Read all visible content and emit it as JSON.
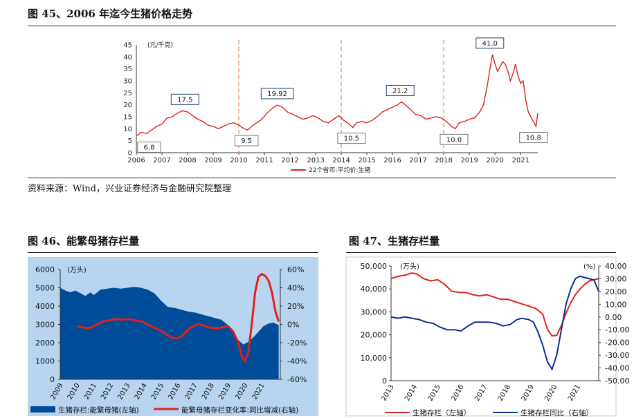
{
  "fig45": {
    "title": "图 45、2006 年迄今生猪价格走势",
    "source": "资料来源：Wind，兴业证券经济与金融研究院整理"
  },
  "fig46": {
    "title": "图 46、能繁母猪存栏量"
  },
  "fig47": {
    "title": "图 47、生猪存栏量"
  },
  "chart_data": [
    {
      "id": "fig45",
      "type": "line",
      "unit_label": "(元/千克)",
      "y_ticks": [
        "0",
        "5",
        "10",
        "15",
        "20",
        "25",
        "30",
        "35",
        "40",
        "45"
      ],
      "ylim": [
        0,
        45
      ],
      "x_ticks": [
        "2006",
        "2007",
        "2008",
        "2009",
        "2010",
        "2011",
        "2012",
        "2013",
        "2014",
        "2015",
        "2016",
        "2017",
        "2018",
        "2019",
        "2020",
        "2021"
      ],
      "xlim": [
        2006,
        2021.67
      ],
      "grid": false,
      "legend": "bottom-center",
      "series": [
        {
          "name": "22个省市:平均价:生猪",
          "color": "#e0201b",
          "x": [
            2006.0,
            2006.2,
            2006.4,
            2006.6,
            2006.8,
            2007.0,
            2007.2,
            2007.4,
            2007.6,
            2007.8,
            2008.0,
            2008.2,
            2008.4,
            2008.6,
            2008.8,
            2009.0,
            2009.2,
            2009.4,
            2009.6,
            2009.8,
            2010.0,
            2010.2,
            2010.35,
            2010.5,
            2010.7,
            2010.9,
            2011.1,
            2011.3,
            2011.5,
            2011.7,
            2011.9,
            2012.1,
            2012.3,
            2012.5,
            2012.7,
            2012.9,
            2013.1,
            2013.3,
            2013.5,
            2013.7,
            2013.9,
            2014.1,
            2014.3,
            2014.45,
            2014.6,
            2014.8,
            2015.0,
            2015.2,
            2015.4,
            2015.6,
            2015.8,
            2016.0,
            2016.2,
            2016.35,
            2016.5,
            2016.7,
            2016.9,
            2017.1,
            2017.3,
            2017.5,
            2017.7,
            2017.9,
            2018.1,
            2018.3,
            2018.45,
            2018.6,
            2018.8,
            2019.0,
            2019.2,
            2019.4,
            2019.55,
            2019.7,
            2019.8,
            2019.9,
            2020.0,
            2020.1,
            2020.2,
            2020.3,
            2020.4,
            2020.5,
            2020.6,
            2020.7,
            2020.8,
            2020.9,
            2021.0,
            2021.1,
            2021.2,
            2021.3,
            2021.4,
            2021.5,
            2021.6,
            2021.67
          ],
          "y": [
            7.0,
            8.5,
            8.0,
            9.5,
            11.0,
            12.0,
            14.5,
            15.0,
            16.5,
            17.5,
            17.0,
            15.5,
            14.0,
            13.0,
            11.5,
            11.0,
            10.0,
            11.0,
            12.0,
            12.5,
            11.5,
            10.0,
            9.5,
            11.0,
            12.5,
            14.0,
            16.5,
            18.5,
            19.9,
            19.0,
            17.0,
            16.0,
            15.0,
            14.0,
            14.5,
            15.5,
            14.5,
            13.0,
            12.5,
            14.0,
            15.5,
            13.5,
            12.0,
            10.5,
            12.5,
            13.0,
            12.5,
            13.5,
            15.0,
            17.0,
            18.0,
            19.0,
            20.0,
            21.2,
            20.0,
            18.0,
            16.0,
            15.5,
            14.0,
            14.5,
            15.0,
            14.5,
            13.0,
            11.0,
            10.0,
            12.5,
            13.0,
            14.0,
            14.5,
            17.0,
            20.0,
            28.0,
            35.0,
            41.0,
            37.0,
            34.0,
            36.0,
            38.0,
            37.0,
            34.0,
            30.0,
            33.0,
            37.0,
            32.0,
            29.0,
            30.0,
            22.0,
            17.0,
            15.0,
            13.0,
            11.0,
            16.5
          ]
        }
      ],
      "annotations": [
        {
          "label": "6.8",
          "x": 2006.5,
          "y": 6.8
        },
        {
          "label": "17.5",
          "x": 2007.9,
          "y": 17.5
        },
        {
          "label": "9.5",
          "x": 2010.3,
          "y": 9.5
        },
        {
          "label": "19.92",
          "x": 2011.5,
          "y": 19.92
        },
        {
          "label": "10.5",
          "x": 2014.4,
          "y": 10.5
        },
        {
          "label": "21.2",
          "x": 2016.3,
          "y": 21.2
        },
        {
          "label": "10.0",
          "x": 2018.4,
          "y": 10.0
        },
        {
          "label": "41.0",
          "x": 2019.8,
          "y": 41.0
        },
        {
          "label": "10.8",
          "x": 2021.5,
          "y": 10.8
        }
      ],
      "dividers_x": [
        2010.0,
        2014.0,
        2018.0
      ]
    },
    {
      "id": "fig46",
      "type": "area",
      "unit_label": "(万头)",
      "y_left_ticks": [
        "6000",
        "5000",
        "4000",
        "3000",
        "2000",
        "1000",
        "0"
      ],
      "ylim_left": [
        0,
        6000
      ],
      "y_right_ticks": [
        "60%",
        "40%",
        "20%",
        "0%",
        "-20%",
        "-40%",
        "-60%"
      ],
      "ylim_right": [
        -60,
        60
      ],
      "x_ticks": [
        "2009",
        "2010",
        "2011",
        "2012",
        "2013",
        "2014",
        "2015",
        "2016",
        "2017",
        "2018",
        "2019",
        "2020",
        "2021"
      ],
      "xlim": [
        2009,
        2022.1
      ],
      "background": "#b8d4ef",
      "legend": "bottom",
      "series": [
        {
          "name": "生猪存栏:能繁母猪(左轴)",
          "axis": "left",
          "color": "#004c98",
          "x": [
            2009.0,
            2009.3,
            2009.6,
            2009.9,
            2010.2,
            2010.5,
            2010.8,
            2011.0,
            2011.4,
            2011.8,
            2012.2,
            2012.6,
            2013.0,
            2013.4,
            2013.8,
            2014.2,
            2014.6,
            2015.0,
            2015.4,
            2015.8,
            2016.2,
            2016.6,
            2017.0,
            2017.4,
            2017.8,
            2018.2,
            2018.6,
            2019.0,
            2019.3,
            2019.6,
            2019.9,
            2020.2,
            2020.5,
            2020.8,
            2021.1,
            2021.4,
            2021.7,
            2022.0
          ],
          "y": [
            5000,
            4850,
            4750,
            4850,
            4700,
            4550,
            4750,
            4600,
            4900,
            4950,
            5000,
            4950,
            5000,
            5050,
            5000,
            4900,
            4700,
            4300,
            3950,
            3900,
            3800,
            3700,
            3650,
            3550,
            3450,
            3350,
            3250,
            2950,
            2500,
            2150,
            1900,
            2050,
            2300,
            2600,
            2900,
            3050,
            3100,
            2950
          ]
        },
        {
          "name": "能繁母猪存栏变化率:同比增减(右轴)",
          "axis": "right",
          "color": "#e0201b",
          "x": [
            2010.0,
            2010.3,
            2010.6,
            2010.9,
            2011.2,
            2011.5,
            2011.8,
            2012.1,
            2012.4,
            2012.7,
            2013.0,
            2013.3,
            2013.6,
            2013.9,
            2014.2,
            2014.5,
            2014.8,
            2015.1,
            2015.4,
            2015.7,
            2016.0,
            2016.3,
            2016.6,
            2016.9,
            2017.2,
            2017.5,
            2017.8,
            2018.1,
            2018.4,
            2018.7,
            2019.0,
            2019.3,
            2019.6,
            2019.8,
            2020.0,
            2020.2,
            2020.4,
            2020.6,
            2020.8,
            2021.0,
            2021.2,
            2021.4,
            2021.6,
            2021.8,
            2022.0
          ],
          "y": [
            -2,
            -3,
            -4,
            -3,
            0,
            3,
            4,
            5,
            6,
            5,
            6,
            5,
            4,
            3,
            0,
            -3,
            -5,
            -8,
            -12,
            -15,
            -15,
            -12,
            -6,
            -2,
            0,
            -1,
            -3,
            -4,
            -4,
            -3,
            -2,
            -8,
            -20,
            -35,
            -40,
            -30,
            0,
            35,
            52,
            55,
            53,
            48,
            35,
            15,
            3
          ]
        }
      ]
    },
    {
      "id": "fig47",
      "type": "line",
      "unit_label_left": "(万头)",
      "unit_label_right": "(%)",
      "y_left_ticks": [
        "50,000",
        "40,000",
        "30,000",
        "20,000",
        "10,000",
        "0"
      ],
      "ylim_left": [
        0,
        50000
      ],
      "y_right_ticks": [
        "40.00",
        "30.00",
        "20.00",
        "10.00",
        "0.00",
        "-10.00",
        "-20.00",
        "-30.00",
        "-40.00",
        "-50.00"
      ],
      "ylim_right": [
        -50,
        40
      ],
      "x_ticks": [
        "2013",
        "2014",
        "2015",
        "2016",
        "2017",
        "2018",
        "2019",
        "2020",
        "2021"
      ],
      "xlim": [
        2013,
        2021.9
      ],
      "legend": "bottom",
      "series": [
        {
          "name": "生猪存栏（左轴）",
          "axis": "left",
          "color": "#e0201b",
          "x": [
            2013.0,
            2013.3,
            2013.6,
            2013.9,
            2014.1,
            2014.4,
            2014.7,
            2015.0,
            2015.3,
            2015.6,
            2015.9,
            2016.2,
            2016.5,
            2016.8,
            2017.1,
            2017.4,
            2017.7,
            2018.0,
            2018.3,
            2018.6,
            2018.9,
            2019.2,
            2019.5,
            2019.7,
            2019.9,
            2020.1,
            2020.3,
            2020.5,
            2020.7,
            2020.9,
            2021.1,
            2021.3,
            2021.5,
            2021.7,
            2021.9
          ],
          "y": [
            44500,
            45500,
            46000,
            47000,
            46500,
            44500,
            43500,
            44000,
            42000,
            39000,
            38500,
            38500,
            37500,
            37000,
            37500,
            36500,
            35500,
            35500,
            34500,
            33500,
            32500,
            31500,
            29000,
            22500,
            19500,
            19800,
            24000,
            29500,
            34000,
            37500,
            40000,
            42000,
            43500,
            44000,
            44500
          ]
        },
        {
          "name": "生猪存栏同比（右轴）",
          "axis": "right",
          "color": "#0a2e8f",
          "x": [
            2013.0,
            2013.3,
            2013.6,
            2013.9,
            2014.2,
            2014.5,
            2014.8,
            2015.1,
            2015.4,
            2015.7,
            2016.0,
            2016.3,
            2016.6,
            2016.9,
            2017.2,
            2017.5,
            2017.8,
            2018.1,
            2018.4,
            2018.6,
            2018.9,
            2019.1,
            2019.3,
            2019.5,
            2019.7,
            2019.9,
            2020.1,
            2020.3,
            2020.5,
            2020.7,
            2020.9,
            2021.1,
            2021.3,
            2021.5,
            2021.7,
            2021.9
          ],
          "y": [
            0,
            -1,
            0,
            -1,
            -2,
            -4,
            -5,
            -8,
            -10,
            -10,
            -11,
            -7,
            -4,
            -4,
            -4,
            -5,
            -7,
            -6,
            -2,
            -1,
            -2,
            -4,
            -12,
            -22,
            -35,
            -41,
            -30,
            -10,
            10,
            22,
            30,
            32,
            31,
            30,
            29,
            20
          ]
        }
      ]
    }
  ]
}
